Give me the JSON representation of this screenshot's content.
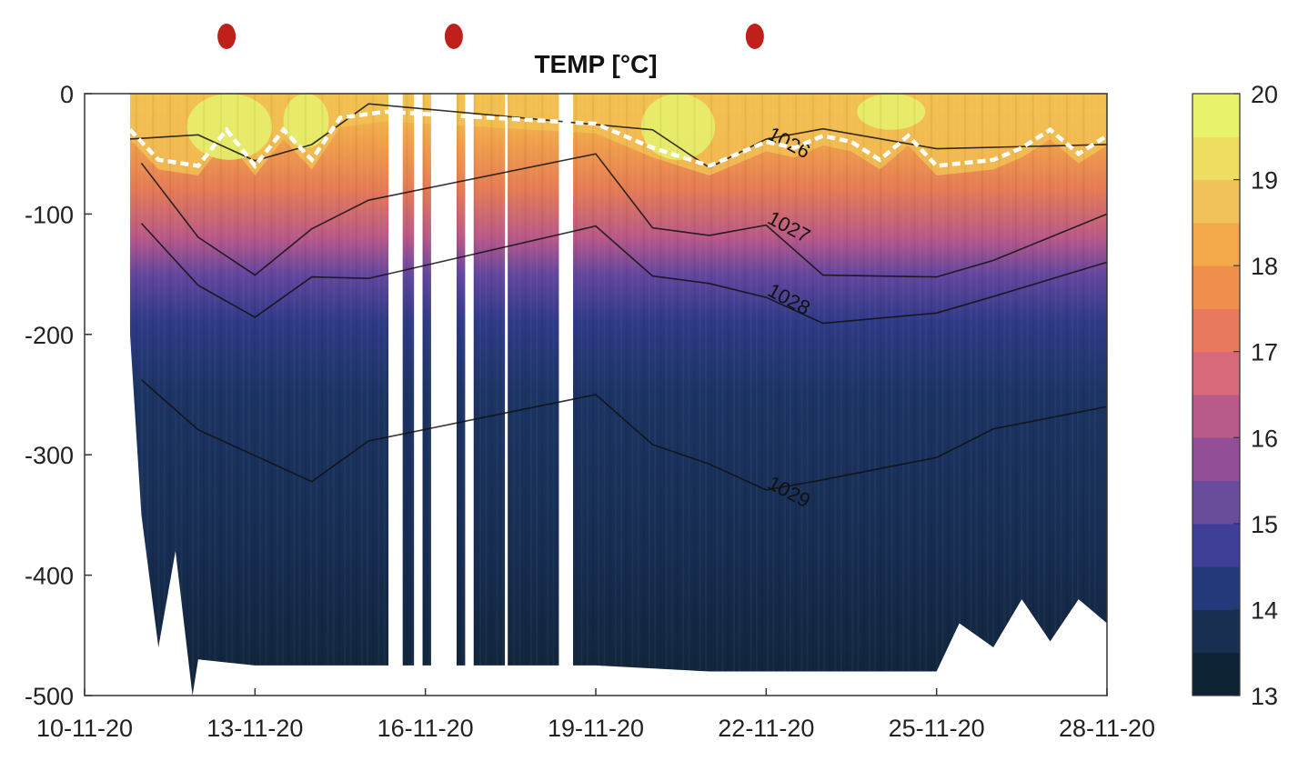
{
  "chart_data": {
    "type": "heatmap",
    "title": "TEMP [°C]",
    "xlabel": "",
    "ylabel": "",
    "x_tick_labels": [
      "10-11-20",
      "13-11-20",
      "16-11-20",
      "19-11-20",
      "22-11-20",
      "25-11-20",
      "28-11-20"
    ],
    "x_range_days": [
      10,
      28
    ],
    "y_ticks": [
      0,
      -100,
      -200,
      -300,
      -400,
      -500
    ],
    "y_tick_labels": [
      "0",
      "-100",
      "-200",
      "-300",
      "-400",
      "-500"
    ],
    "ylim": [
      -500,
      0
    ],
    "colorbar": {
      "ticks": [
        20,
        19,
        18,
        17,
        16,
        15,
        14,
        13
      ],
      "tick_labels": [
        "20",
        "19",
        "18",
        "17",
        "16",
        "15",
        "14",
        "13"
      ],
      "range": [
        13,
        20
      ],
      "colors": [
        "#0e2235",
        "#182f52",
        "#223a7a",
        "#3f3f97",
        "#6a4c9c",
        "#924f97",
        "#b85a8a",
        "#d8697a",
        "#e9795e",
        "#f08e4c",
        "#f3a84a",
        "#f1c25a",
        "#eedd60",
        "#e8f36b"
      ]
    },
    "contours": [
      {
        "label": "1026",
        "depth_profile": [
          [
            10.8,
            -40
          ],
          [
            12,
            -35
          ],
          [
            13,
            -55
          ],
          [
            14,
            -40
          ],
          [
            15,
            -10
          ],
          [
            20,
            -30
          ],
          [
            21,
            -60
          ],
          [
            22,
            -40
          ],
          [
            23,
            -30
          ],
          [
            25,
            -45
          ],
          [
            28,
            -40
          ]
        ]
      },
      {
        "label": "1027",
        "depth_profile": [
          [
            11,
            -60
          ],
          [
            12,
            -120
          ],
          [
            13,
            -150
          ],
          [
            14,
            -110
          ],
          [
            15,
            -90
          ],
          [
            19,
            -50
          ],
          [
            20,
            -110
          ],
          [
            21,
            -120
          ],
          [
            22,
            -110
          ],
          [
            23,
            -150
          ],
          [
            25,
            -150
          ],
          [
            26,
            -140
          ],
          [
            28,
            -100
          ]
        ]
      },
      {
        "label": "1028",
        "depth_profile": [
          [
            11,
            -110
          ],
          [
            12,
            -160
          ],
          [
            13,
            -185
          ],
          [
            14,
            -150
          ],
          [
            15,
            -155
          ],
          [
            19,
            -110
          ],
          [
            20,
            -150
          ],
          [
            21,
            -160
          ],
          [
            22,
            -170
          ],
          [
            23,
            -190
          ],
          [
            25,
            -180
          ],
          [
            26,
            -170
          ],
          [
            28,
            -140
          ]
        ]
      },
      {
        "label": "1029",
        "depth_profile": [
          [
            11,
            -240
          ],
          [
            12,
            -280
          ],
          [
            13,
            -300
          ],
          [
            14,
            -320
          ],
          [
            15,
            -290
          ],
          [
            19,
            -250
          ],
          [
            20,
            -290
          ],
          [
            21,
            -310
          ],
          [
            22,
            -330
          ],
          [
            23,
            -320
          ],
          [
            25,
            -300
          ],
          [
            26,
            -280
          ],
          [
            28,
            -260
          ]
        ]
      }
    ],
    "mixed_layer": [
      [
        10.8,
        -30
      ],
      [
        11.3,
        -55
      ],
      [
        12,
        -60
      ],
      [
        12.5,
        -30
      ],
      [
        13,
        -60
      ],
      [
        13.5,
        -30
      ],
      [
        14,
        -55
      ],
      [
        14.5,
        -20
      ],
      [
        15.3,
        -15
      ],
      [
        19,
        -25
      ],
      [
        20,
        -45
      ],
      [
        21,
        -60
      ],
      [
        21.5,
        -50
      ],
      [
        22,
        -40
      ],
      [
        22.5,
        -45
      ],
      [
        23,
        -35
      ],
      [
        23.5,
        -40
      ],
      [
        24,
        -55
      ],
      [
        24.5,
        -35
      ],
      [
        25,
        -60
      ],
      [
        26,
        -55
      ],
      [
        26.5,
        -45
      ],
      [
        27,
        -30
      ],
      [
        27.5,
        -50
      ],
      [
        28,
        -35
      ]
    ],
    "markers": [
      {
        "day": 12.5,
        "color": "#c0201a"
      },
      {
        "day": 16.5,
        "color": "#c0201a"
      },
      {
        "day": 21.8,
        "color": "#c0201a"
      }
    ],
    "data_gaps_days": [
      [
        15.35,
        15.6
      ],
      [
        15.8,
        15.95
      ],
      [
        16.1,
        16.55
      ],
      [
        16.7,
        16.85
      ],
      [
        17.4,
        17.45
      ],
      [
        18.35,
        18.6
      ]
    ],
    "profile_max_depth": [
      [
        10.8,
        -200
      ],
      [
        11,
        -350
      ],
      [
        11.3,
        -460
      ],
      [
        11.6,
        -380
      ],
      [
        11.9,
        -500
      ],
      [
        12,
        -470
      ],
      [
        13,
        -475
      ],
      [
        15,
        -475
      ],
      [
        19,
        -475
      ],
      [
        21,
        -480
      ],
      [
        25,
        -480
      ],
      [
        25.4,
        -440
      ],
      [
        26,
        -460
      ],
      [
        26.5,
        -420
      ],
      [
        27,
        -455
      ],
      [
        27.5,
        -420
      ],
      [
        28,
        -440
      ]
    ]
  }
}
